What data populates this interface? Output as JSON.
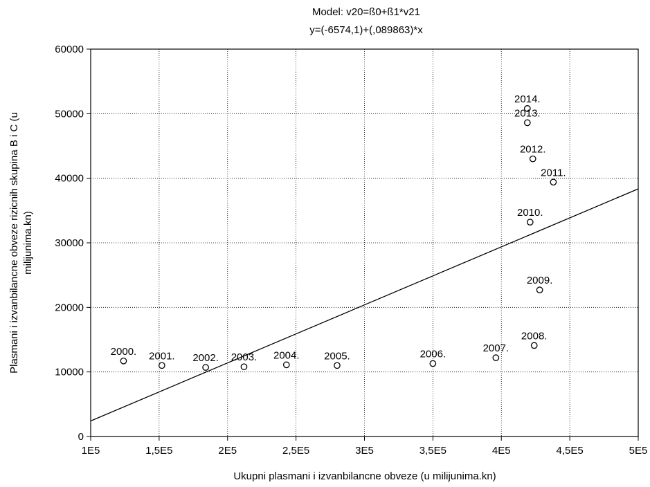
{
  "chart_data": {
    "type": "scatter",
    "title_line1": "Model: v20=ß0+ß1*v21",
    "title_line2": "y=(-6574,1)+(,089863)*x",
    "xlabel": "Ukupni plasmani i izvanbilancne obveze (u milijunima.kn)",
    "ylabel_line1": "Plasmani i izvanbilancne obveze rizicnih skupina B i C (u",
    "ylabel_line2": "milijunima.kn)",
    "xlim": [
      100000,
      500000
    ],
    "ylim": [
      0,
      60000
    ],
    "x_ticks": [
      100000,
      150000,
      200000,
      250000,
      300000,
      350000,
      400000,
      450000,
      500000
    ],
    "x_tick_labels": [
      "1E5",
      "1,5E5",
      "2E5",
      "2,5E5",
      "3E5",
      "3,5E5",
      "4E5",
      "4,5E5",
      "5E5"
    ],
    "y_ticks": [
      0,
      10000,
      20000,
      30000,
      40000,
      50000,
      60000
    ],
    "y_tick_labels": [
      "0",
      "10000",
      "20000",
      "30000",
      "40000",
      "50000",
      "60000"
    ],
    "grid": true,
    "regression": {
      "intercept": -6574.1,
      "slope": 0.089863
    },
    "points": [
      {
        "label": "2000.",
        "x": 124000,
        "y": 11700
      },
      {
        "label": "2001.",
        "x": 152000,
        "y": 11000
      },
      {
        "label": "2002.",
        "x": 184000,
        "y": 10700
      },
      {
        "label": "2003.",
        "x": 212000,
        "y": 10800
      },
      {
        "label": "2004.",
        "x": 243000,
        "y": 11100
      },
      {
        "label": "2005.",
        "x": 280000,
        "y": 11000
      },
      {
        "label": "2006.",
        "x": 350000,
        "y": 11300
      },
      {
        "label": "2007.",
        "x": 396000,
        "y": 12200
      },
      {
        "label": "2008.",
        "x": 424000,
        "y": 14100
      },
      {
        "label": "2009.",
        "x": 428000,
        "y": 22700
      },
      {
        "label": "2010.",
        "x": 421000,
        "y": 33200
      },
      {
        "label": "2011.",
        "x": 438000,
        "y": 39400
      },
      {
        "label": "2012.",
        "x": 423000,
        "y": 43000
      },
      {
        "label": "2013.",
        "x": 419000,
        "y": 48600
      },
      {
        "label": "2014.",
        "x": 419000,
        "y": 50800
      }
    ]
  }
}
